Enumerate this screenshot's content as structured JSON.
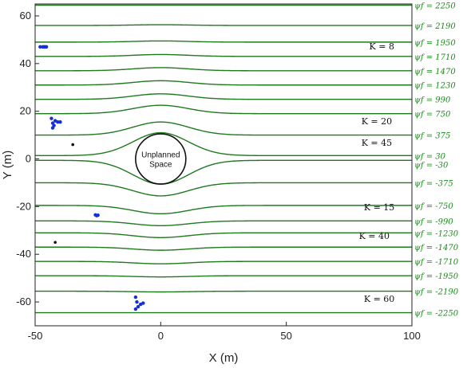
{
  "chart_data": {
    "type": "line",
    "title": "",
    "xlabel": "X (m)",
    "ylabel": "Y (m)",
    "xlim": [
      -50,
      100
    ],
    "ylim": [
      -70,
      65
    ],
    "xticks": [
      "-50",
      "0",
      "50",
      "100"
    ],
    "yticks": [
      "-60",
      "-40",
      "-20",
      "0",
      "20",
      "40",
      "60"
    ],
    "grid": false,
    "obstacle": {
      "center": [
        0,
        0
      ],
      "radius": 10,
      "label": "Unplanned Space"
    },
    "streamlines": [
      {
        "label": "ψf = 2250",
        "y_far": 64.5,
        "y_near": 64.5
      },
      {
        "label": "ψf = 2190",
        "y_far": 56,
        "y_near": 56.3
      },
      {
        "label": "ψf = 1950",
        "y_far": 49,
        "y_near": 49.5
      },
      {
        "label": "ψf = 1710",
        "y_far": 43,
        "y_near": 43.8
      },
      {
        "label": "ψf = 1470",
        "y_far": 37,
        "y_near": 38.3
      },
      {
        "label": "ψf = 1230",
        "y_far": 31,
        "y_near": 32.8
      },
      {
        "label": "ψf = 990",
        "y_far": 25,
        "y_near": 27.3
      },
      {
        "label": "ψf = 750",
        "y_far": 19,
        "y_near": 22.5
      },
      {
        "label": "ψf = 375",
        "y_far": 10,
        "y_near": 15.5
      },
      {
        "label": "ψf = 30",
        "y_far": 1.4,
        "y_near": 11
      },
      {
        "label": "ψf = -30",
        "y_far": -0.6,
        "y_near": -10.6
      },
      {
        "label": "ψf = -375",
        "y_far": -10,
        "y_near": -15.5
      },
      {
        "label": "ψf = -750",
        "y_far": -19.5,
        "y_near": -23
      },
      {
        "label": "ψf = -990",
        "y_far": -26,
        "y_near": -28
      },
      {
        "label": "ψf = -1230",
        "y_far": -31,
        "y_near": -33
      },
      {
        "label": "ψf = -1470",
        "y_far": -37,
        "y_near": -38.3
      },
      {
        "label": "ψf = -1710",
        "y_far": -43,
        "y_near": -44
      },
      {
        "label": "ψf = -1950",
        "y_far": -49,
        "y_near": -49.5
      },
      {
        "label": "ψf = -2190",
        "y_far": -55.5,
        "y_near": -55.8
      },
      {
        "label": "ψf = -2250",
        "y_far": -64.5,
        "y_near": -64.5
      }
    ],
    "k_annotations": [
      {
        "text": "K = 8",
        "x": 88,
        "y": 46
      },
      {
        "text": "K = 20",
        "x": 86,
        "y": 14.5
      },
      {
        "text": "K = 45",
        "x": 86,
        "y": 5.5
      },
      {
        "text": "K = 15",
        "x": 87,
        "y": -21.5
      },
      {
        "text": "K = 40",
        "x": 85,
        "y": -33.5
      },
      {
        "text": "K = 60",
        "x": 87,
        "y": -60
      }
    ],
    "blue_clusters": [
      [
        [
          -48,
          47
        ],
        [
          -47,
          47
        ],
        [
          -46.5,
          47
        ],
        [
          -46,
          47
        ],
        [
          -45.5,
          47
        ]
      ],
      [
        [
          -43.5,
          17
        ],
        [
          -43,
          15
        ],
        [
          -42,
          16
        ],
        [
          -41,
          15.5
        ],
        [
          -43,
          13
        ],
        [
          -42.5,
          14
        ],
        [
          -40,
          15.5
        ]
      ],
      [
        [
          -26,
          -23.5
        ],
        [
          -25.5,
          -23.8
        ],
        [
          -25,
          -23.6
        ]
      ],
      [
        [
          -10,
          -58
        ],
        [
          -9.5,
          -60
        ],
        [
          -8,
          -61
        ],
        [
          -9,
          -62
        ],
        [
          -10,
          -63
        ],
        [
          -7,
          -60.5
        ]
      ]
    ],
    "black_points": [
      [
        -35,
        6
      ],
      [
        -42,
        -35
      ]
    ]
  }
}
